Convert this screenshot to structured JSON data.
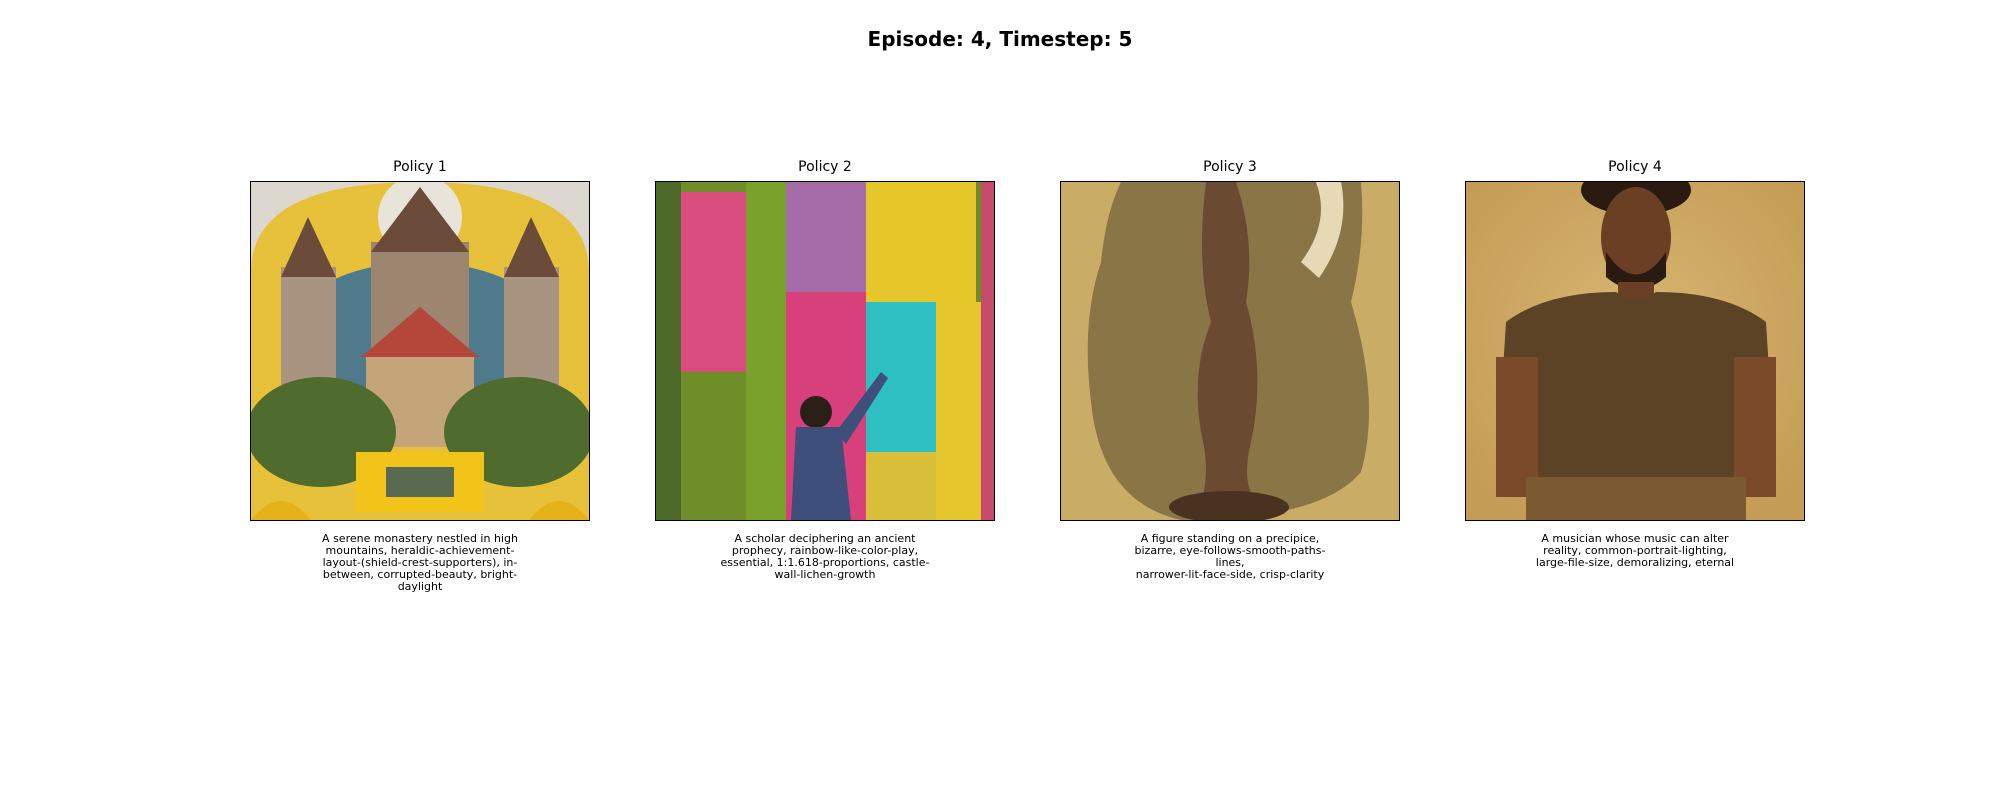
{
  "figure": {
    "title": "Episode: 4, Timestep: 5"
  },
  "panels": [
    {
      "title": "Policy 1",
      "image": "monastery-illustration",
      "caption": "A serene monastery nestled in high\nmountains, heraldic-achievement-\nlayout-(shield-crest-supporters), in-\nbetween, corrupted-beauty, bright-\ndaylight"
    },
    {
      "title": "Policy 2",
      "image": "scholar-colorful-wall",
      "caption": "A scholar deciphering an ancient\nprophecy, rainbow-like-color-play,\nessential, 1:1.618-proportions, castle-\nwall-lichen-growth"
    },
    {
      "title": "Policy 3",
      "image": "figure-sepia-sketch",
      "caption": "A figure standing on a precipice,\nbizarre, eye-follows-smooth-paths-lines,\nnarrower-lit-face-side, crisp-clarity"
    },
    {
      "title": "Policy 4",
      "image": "musician-portrait",
      "caption": "A musician whose music can alter\nreality, common-portrait-lighting,\nlarge-file-size, demoralizing, eternal"
    }
  ]
}
